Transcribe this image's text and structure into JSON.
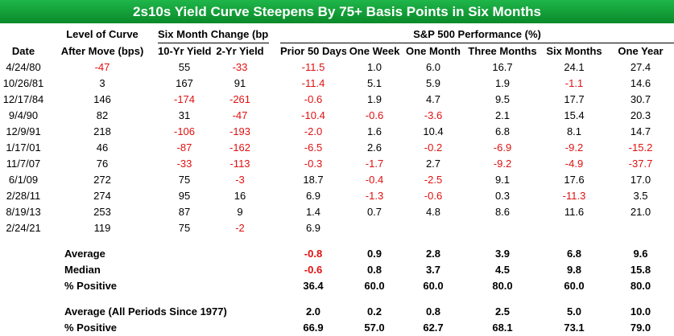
{
  "title": "2s10s Yield Curve Steepens By 75+ Basis Points in Six Months",
  "groups": {
    "level": "Level of Curve",
    "six_month": "Six Month Change (bps)",
    "sp500": "S&P 500 Performance (%)"
  },
  "columns": [
    "Date",
    "After Move (bps)",
    "10-Yr Yield",
    "2-Yr Yield",
    "Prior 50 Days",
    "One Week",
    "One Month",
    "Three Months",
    "Six Months",
    "One Year"
  ],
  "rows": [
    [
      "4/24/80",
      "-47",
      "55",
      "-33",
      "-11.5",
      "1.0",
      "6.0",
      "16.7",
      "24.1",
      "27.4"
    ],
    [
      "10/26/81",
      "3",
      "167",
      "91",
      "-11.4",
      "5.1",
      "5.9",
      "1.9",
      "-1.1",
      "14.6"
    ],
    [
      "12/17/84",
      "146",
      "-174",
      "-261",
      "-0.6",
      "1.9",
      "4.7",
      "9.5",
      "17.7",
      "30.7"
    ],
    [
      "9/4/90",
      "82",
      "31",
      "-47",
      "-10.4",
      "-0.6",
      "-3.6",
      "2.1",
      "15.4",
      "20.3"
    ],
    [
      "12/9/91",
      "218",
      "-106",
      "-193",
      "-2.0",
      "1.6",
      "10.4",
      "6.8",
      "8.1",
      "14.7"
    ],
    [
      "1/17/01",
      "46",
      "-87",
      "-162",
      "-6.5",
      "2.6",
      "-0.2",
      "-6.9",
      "-9.2",
      "-15.2"
    ],
    [
      "11/7/07",
      "76",
      "-33",
      "-113",
      "-0.3",
      "-1.7",
      "2.7",
      "-9.2",
      "-4.9",
      "-37.7"
    ],
    [
      "6/1/09",
      "272",
      "75",
      "-3",
      "18.7",
      "-0.4",
      "-2.5",
      "9.1",
      "17.6",
      "17.0"
    ],
    [
      "2/28/11",
      "274",
      "95",
      "16",
      "6.9",
      "-1.3",
      "-0.6",
      "0.3",
      "-11.3",
      "3.5"
    ],
    [
      "8/19/13",
      "253",
      "87",
      "9",
      "1.4",
      "0.7",
      "4.8",
      "8.6",
      "11.6",
      "21.0"
    ],
    [
      "2/24/21",
      "119",
      "75",
      "-2",
      "6.9",
      "",
      "",
      "",
      "",
      ""
    ]
  ],
  "summary": [
    {
      "label": "Average",
      "values": [
        "-0.8",
        "0.9",
        "2.8",
        "3.9",
        "6.8",
        "9.6"
      ]
    },
    {
      "label": "Median",
      "values": [
        "-0.6",
        "0.8",
        "3.7",
        "4.5",
        "9.8",
        "15.8"
      ]
    },
    {
      "label": "% Positive",
      "values": [
        "36.4",
        "60.0",
        "60.0",
        "80.0",
        "60.0",
        "80.0"
      ]
    }
  ],
  "all_periods": [
    {
      "label": "Average (All Periods Since 1977)",
      "values": [
        "2.0",
        "0.2",
        "0.8",
        "2.5",
        "5.0",
        "10.0"
      ]
    },
    {
      "label": "% Positive",
      "values": [
        "66.9",
        "57.0",
        "62.7",
        "68.1",
        "73.1",
        "79.0"
      ]
    }
  ],
  "colors": {
    "negative": "#e01010",
    "header_green": "#1fb64a"
  }
}
